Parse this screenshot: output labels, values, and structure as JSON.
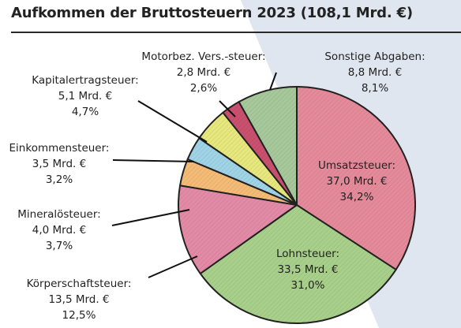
{
  "chart_data": {
    "type": "pie",
    "title": "Aufkommen der Bruttosteuern 2023 (108,1 Mrd. €)",
    "unit": "Mrd. €",
    "slices": [
      {
        "name": "Umsatzsteuer:",
        "value": 37.0,
        "value_label": "37,0 Mrd. €",
        "percent_label": "34,2%",
        "color": "#e58a9a"
      },
      {
        "name": "Lohnsteuer:",
        "value": 33.5,
        "value_label": "33,5 Mrd. €",
        "percent_label": "31,0%",
        "color": "#a8d08a"
      },
      {
        "name": "Körperschaftsteuer:",
        "value": 13.5,
        "value_label": "13,5 Mrd. €",
        "percent_label": "12,5%",
        "color": "#e38aa7"
      },
      {
        "name": "Mineralösteuer:",
        "value": 4.0,
        "value_label": "4,0 Mrd. €",
        "percent_label": "3,7%",
        "color": "#f3bb76"
      },
      {
        "name": "Einkommensteuer:",
        "value": 3.5,
        "value_label": "3,5 Mrd. €",
        "percent_label": "3,2%",
        "color": "#9fd3e6"
      },
      {
        "name": "Kapitalertragsteuer:",
        "value": 5.1,
        "value_label": "5,1 Mrd. €",
        "percent_label": "4,7%",
        "color": "#e6e77d"
      },
      {
        "name": "Motorbez. Vers.-steuer:",
        "value": 2.8,
        "value_label": "2,8 Mrd. €",
        "percent_label": "2,6%",
        "color": "#c9506f"
      },
      {
        "name": "Sonstige Abgaben:",
        "value": 8.8,
        "value_label": "8,8 Mrd. €",
        "percent_label": "8,1%",
        "color": "#a6c89a"
      }
    ],
    "legend": "none",
    "grid": false
  }
}
